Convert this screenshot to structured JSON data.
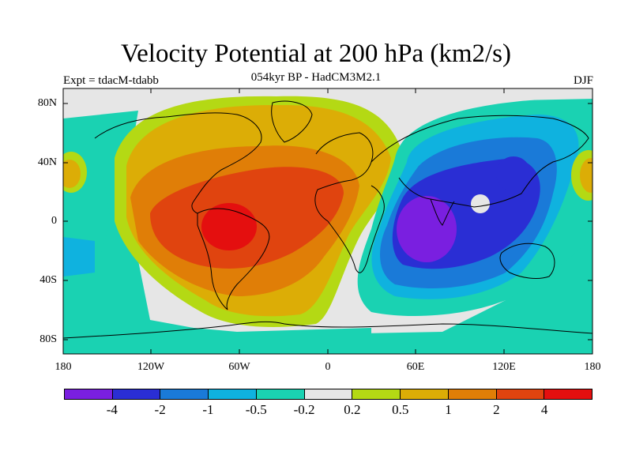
{
  "title": "Velocity Potential at 200 hPa (km2/s)",
  "subtitle": "054kyr BP - HadCM3M2.1",
  "experiment_label": "Expt = tdacM-tdabb",
  "season": "DJF",
  "lat_labels": [
    "80N",
    "40N",
    "0",
    "40S",
    "80S"
  ],
  "lon_labels": [
    "180",
    "120W",
    "60W",
    "0",
    "60E",
    "120E",
    "180"
  ],
  "colorbar": {
    "colors": [
      "#7a1fe0",
      "#2a2ed4",
      "#1a7ad8",
      "#0fb2df",
      "#1ad2b2",
      "#e6e6e6",
      "#b4d914",
      "#dcad06",
      "#e07e07",
      "#e0440f",
      "#e40f0f"
    ],
    "labels": [
      "-4",
      "-2",
      "-1",
      "-0.5",
      "-0.2",
      "0.2",
      "0.5",
      "1",
      "2",
      "4"
    ]
  }
}
